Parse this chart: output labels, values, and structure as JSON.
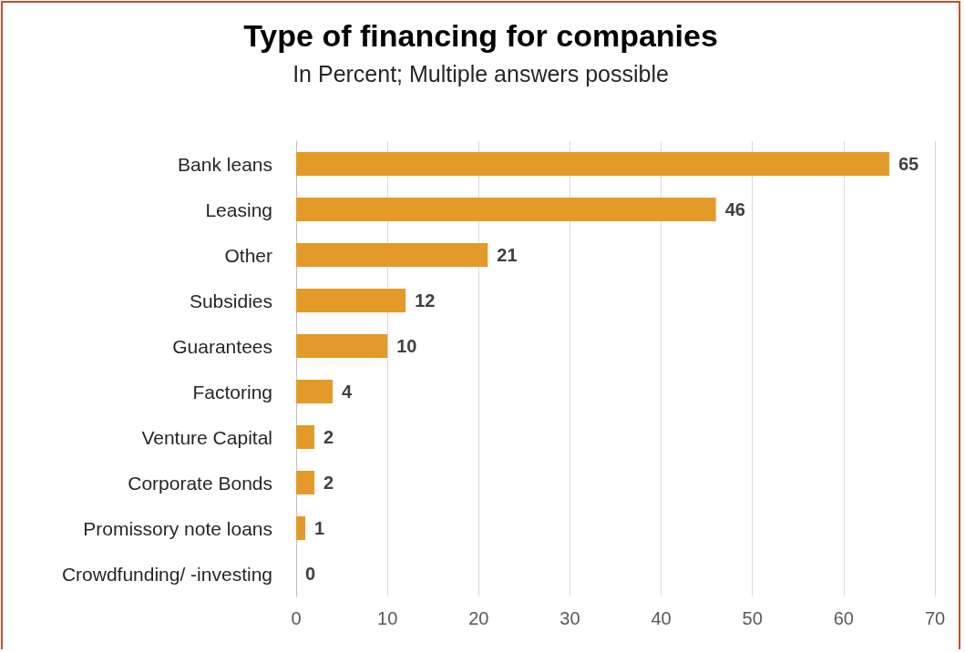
{
  "chart_data": {
    "type": "bar",
    "orientation": "horizontal",
    "title": "Type of financing for companies",
    "subtitle": "In Percent; Multiple answers possible",
    "categories": [
      "Bank leans",
      "Leasing",
      "Other",
      "Subsidies",
      "Guarantees",
      "Factoring",
      "Venture Capital",
      "Corporate Bonds",
      "Promissory note loans",
      "Crowdfunding/ -investing"
    ],
    "values": [
      65,
      46,
      21,
      12,
      10,
      4,
      2,
      2,
      1,
      0
    ],
    "color": "#e39a28",
    "xlim": [
      0,
      70
    ],
    "xticks": [
      0,
      10,
      20,
      30,
      40,
      50,
      60,
      70
    ],
    "grid": "x",
    "data_labels": true
  }
}
